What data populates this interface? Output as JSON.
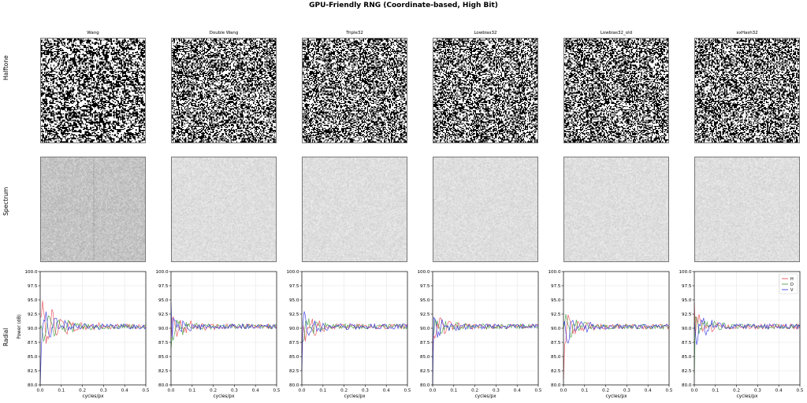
{
  "title": "GPU-Friendly RNG (Coordinate-based, High Bit)",
  "rows": [
    "Halftone",
    "Spectrum",
    "Radial"
  ],
  "columns": [
    "Wang",
    "Double Wang",
    "Triple32",
    "Lowbias32",
    "Lowbias32_old",
    "xxHash32"
  ],
  "chart_data": {
    "type": "line",
    "xlabel": "cycles/px",
    "ylabel": "Power (dB)",
    "xlim": [
      0.0,
      0.5
    ],
    "ylim": [
      80.0,
      100.0
    ],
    "xticks": [
      "0.0",
      "0.1",
      "0.2",
      "0.3",
      "0.4",
      "0.5"
    ],
    "yticks": [
      "80.0",
      "82.5",
      "85.0",
      "87.5",
      "90.0",
      "92.5",
      "95.0",
      "97.5",
      "100.0"
    ],
    "grid": true,
    "legend": {
      "placement": "top-right",
      "entries": [
        "H",
        "D",
        "V"
      ]
    },
    "series_colors": {
      "H": "#e8404a",
      "D": "#3a9a3a",
      "V": "#2a2ae0"
    },
    "panels": [
      {
        "name": "Wang",
        "baseline": 90.3,
        "H": {
          "start": 92.0,
          "amp": 3.8,
          "decay": 0.09
        },
        "D": {
          "start": 90.0,
          "amp": 2.6,
          "decay": 0.08
        },
        "V": {
          "start": 80.0,
          "amp": 3.2,
          "decay": 0.07
        }
      },
      {
        "name": "Double Wang",
        "baseline": 90.3,
        "H": {
          "start": 88.0,
          "amp": 2.4,
          "decay": 0.06
        },
        "D": {
          "start": 86.5,
          "amp": 2.2,
          "decay": 0.05
        },
        "V": {
          "start": 94.5,
          "amp": 3.0,
          "decay": 0.05
        }
      },
      {
        "name": "Triple32",
        "baseline": 90.3,
        "H": {
          "start": 85.5,
          "amp": 2.6,
          "decay": 0.06
        },
        "D": {
          "start": 87.5,
          "amp": 2.2,
          "decay": 0.05
        },
        "V": {
          "start": 82.5,
          "amp": 3.0,
          "decay": 0.06
        }
      },
      {
        "name": "Lowbias32",
        "baseline": 90.3,
        "H": {
          "start": 86.0,
          "amp": 2.0,
          "decay": 0.05
        },
        "D": {
          "start": 89.0,
          "amp": 1.8,
          "decay": 0.05
        },
        "V": {
          "start": 80.0,
          "amp": 2.4,
          "decay": 0.05
        }
      },
      {
        "name": "Lowbias32_old",
        "baseline": 90.3,
        "H": {
          "start": 81.0,
          "amp": 3.0,
          "decay": 0.05
        },
        "D": {
          "start": 90.0,
          "amp": 2.2,
          "decay": 0.05
        },
        "V": {
          "start": 90.5,
          "amp": 2.6,
          "decay": 0.06
        }
      },
      {
        "name": "xxHash32",
        "baseline": 90.3,
        "H": {
          "start": 94.5,
          "amp": 2.6,
          "decay": 0.05
        },
        "D": {
          "start": 82.0,
          "amp": 2.4,
          "decay": 0.05
        },
        "V": {
          "start": 91.0,
          "amp": 2.6,
          "decay": 0.06
        }
      }
    ]
  }
}
